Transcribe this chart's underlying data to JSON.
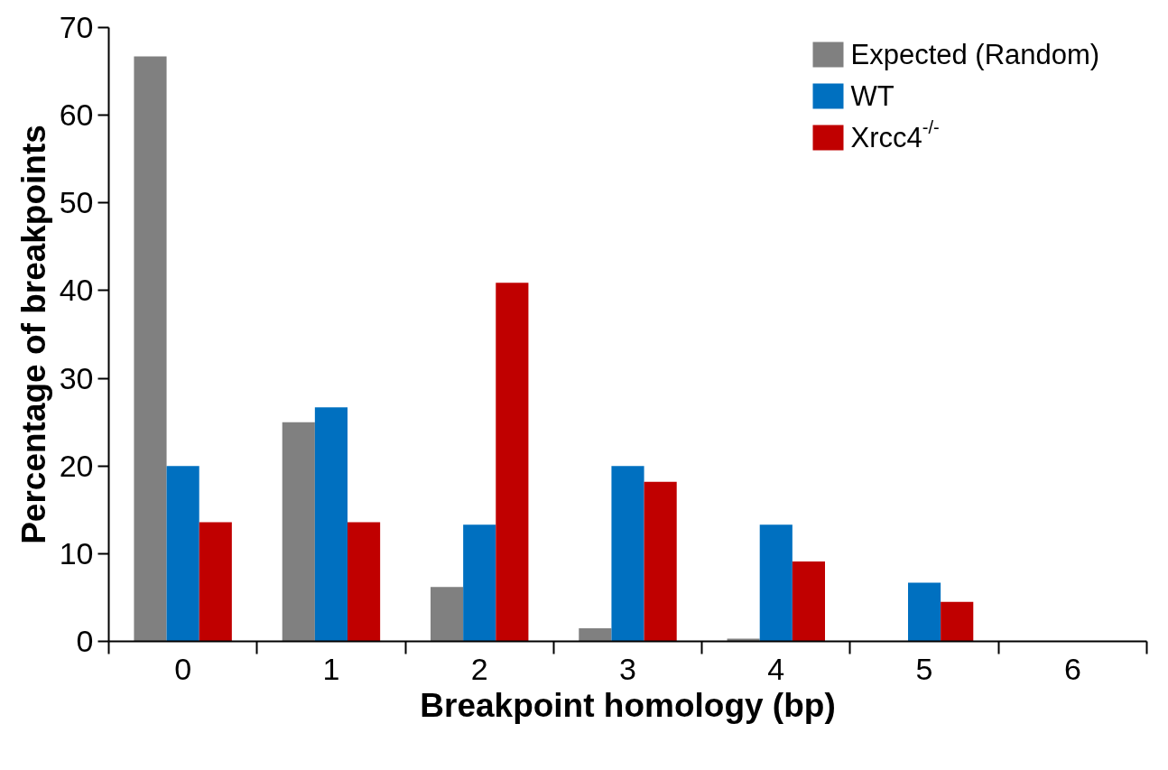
{
  "chart_data": {
    "type": "bar",
    "xlabel": "Breakpoint homology (bp)",
    "ylabel": "Percentage of breakpoints",
    "categories": [
      "0",
      "1",
      "2",
      "3",
      "4",
      "5",
      "6"
    ],
    "series": [
      {
        "name": "Expected (Random)",
        "color": "#808080",
        "values": [
          66.7,
          25.0,
          6.2,
          1.5,
          0.3,
          0,
          0
        ]
      },
      {
        "name": "WT",
        "color": "#0070c0",
        "values": [
          20.0,
          26.7,
          13.3,
          20.0,
          13.3,
          6.7,
          0
        ]
      },
      {
        "name": "Xrcc4$^{-/-}$",
        "color": "#c00000",
        "values": [
          13.6,
          13.6,
          40.9,
          18.2,
          9.1,
          4.5,
          0
        ]
      }
    ],
    "ylim": [
      0,
      70
    ],
    "yticks": [
      0,
      10,
      20,
      30,
      40,
      50,
      60,
      70
    ],
    "grid": false,
    "legend": "top right"
  }
}
